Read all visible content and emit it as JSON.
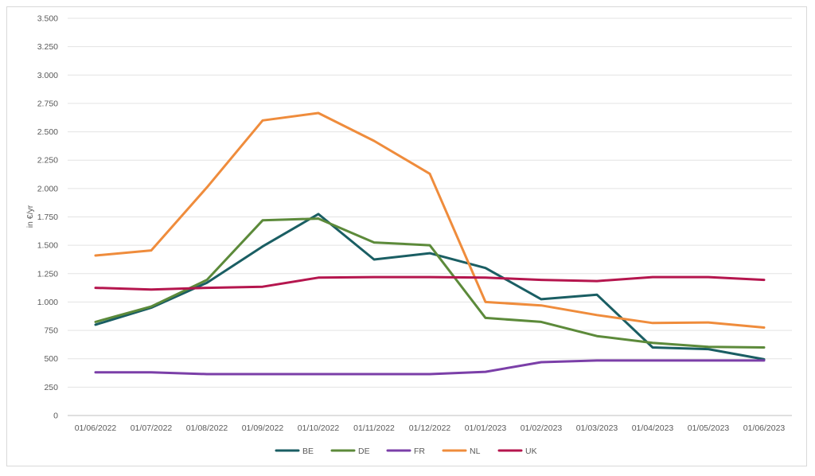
{
  "chart_data": {
    "type": "line",
    "title": "",
    "xlabel": "",
    "ylabel": "in €/yr",
    "ylim": [
      0,
      3500
    ],
    "yticks": [
      0,
      250,
      500,
      750,
      1000,
      1250,
      1500,
      1750,
      2000,
      2250,
      2500,
      2750,
      3000,
      3250,
      3500
    ],
    "ytick_labels": [
      "0",
      "250",
      "500",
      "750",
      "1.000",
      "1.250",
      "1.500",
      "1.750",
      "2.000",
      "2.250",
      "2.500",
      "2.750",
      "3.000",
      "3.250",
      "3.500"
    ],
    "grid": true,
    "legend_position": "bottom",
    "categories": [
      "01/06/2022",
      "01/07/2022",
      "01/08/2022",
      "01/09/2022",
      "01/10/2022",
      "01/11/2022",
      "01/12/2022",
      "01/01/2023",
      "01/02/2023",
      "01/03/2023",
      "01/04/2023",
      "01/05/2023",
      "01/06/2023"
    ],
    "series": [
      {
        "name": "BE",
        "color": "#1a5e63",
        "values": [
          800,
          950,
          1170,
          1490,
          1775,
          1375,
          1430,
          1300,
          1025,
          1065,
          600,
          585,
          495
        ]
      },
      {
        "name": "DE",
        "color": "#5c8a3a",
        "values": [
          825,
          960,
          1195,
          1720,
          1735,
          1525,
          1500,
          860,
          825,
          700,
          640,
          605,
          600
        ]
      },
      {
        "name": "FR",
        "color": "#7b3fa8",
        "values": [
          380,
          380,
          365,
          365,
          365,
          365,
          365,
          385,
          470,
          485,
          485,
          485,
          485
        ]
      },
      {
        "name": "NL",
        "color": "#ef8c3c",
        "values": [
          1410,
          1455,
          2010,
          2600,
          2665,
          2420,
          2130,
          1000,
          970,
          885,
          815,
          820,
          775
        ]
      },
      {
        "name": "UK",
        "color": "#b5164e",
        "values": [
          1125,
          1110,
          1125,
          1135,
          1215,
          1220,
          1220,
          1215,
          1195,
          1185,
          1220,
          1220,
          1195
        ]
      }
    ]
  }
}
